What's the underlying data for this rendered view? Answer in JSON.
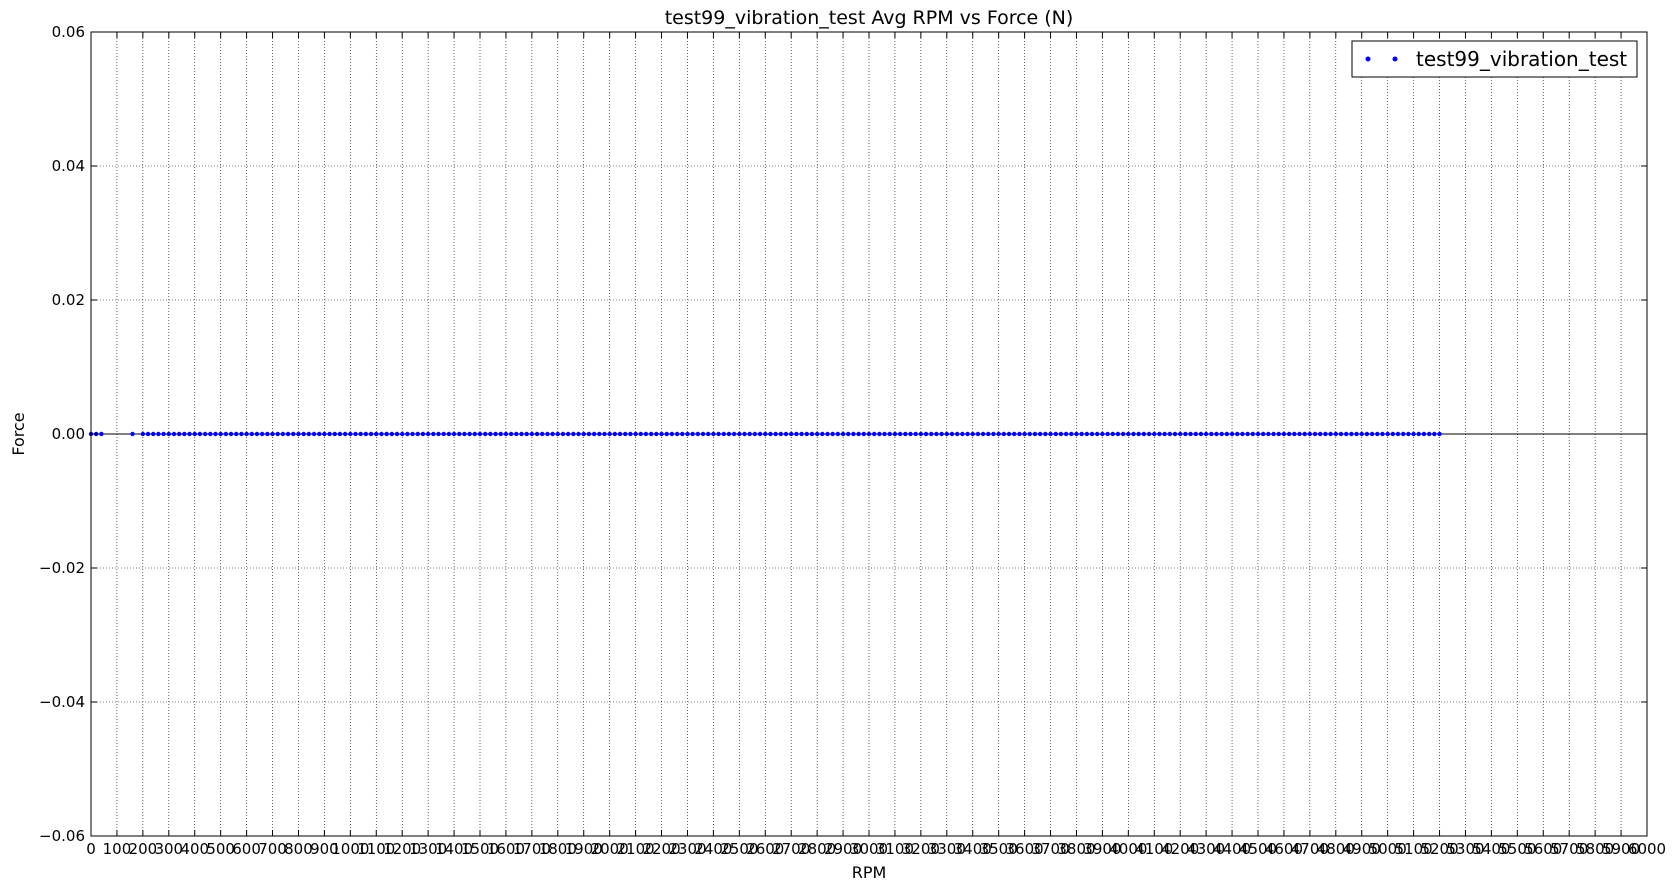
{
  "chart_data": {
    "type": "scatter",
    "title": "test99_vibration_test Avg RPM vs Force (N)",
    "xlabel": "RPM",
    "ylabel": "Force",
    "xlim": [
      0,
      6000
    ],
    "ylim": [
      -0.06,
      0.06
    ],
    "x_ticks": [
      0,
      100,
      200,
      300,
      400,
      500,
      600,
      700,
      800,
      900,
      1000,
      1100,
      1200,
      1300,
      1400,
      1500,
      1600,
      1700,
      1800,
      1900,
      2000,
      2100,
      2200,
      2300,
      2400,
      2500,
      2600,
      2700,
      2800,
      2900,
      3000,
      3100,
      3200,
      3300,
      3400,
      3500,
      3600,
      3700,
      3800,
      3900,
      4000,
      4100,
      4200,
      4300,
      4400,
      4500,
      4600,
      4700,
      4800,
      4900,
      5000,
      5100,
      5200,
      5300,
      5400,
      5500,
      5600,
      5700,
      5800,
      5900,
      6000
    ],
    "y_ticks": [
      -0.06,
      -0.04,
      -0.02,
      0.0,
      0.02,
      0.04,
      0.06
    ],
    "y_tick_labels": [
      "−0.06",
      "−0.04",
      "−0.02",
      "0.00",
      "0.02",
      "0.04",
      "0.06"
    ],
    "grid": true,
    "legend_position": "top-right",
    "series": [
      {
        "name": "test99_vibration_test",
        "color": "#0000ff",
        "marker": "point",
        "x_start": 0,
        "x_step": 20,
        "count": 3,
        "x_start_2": 160,
        "x_step_2": 20,
        "count_2": 1,
        "x_start_3": 200,
        "x_step_3": 20,
        "count_3": 251,
        "y_value": 0.0
      }
    ],
    "reference_line": {
      "y": 0.0,
      "color": "#000000"
    }
  }
}
